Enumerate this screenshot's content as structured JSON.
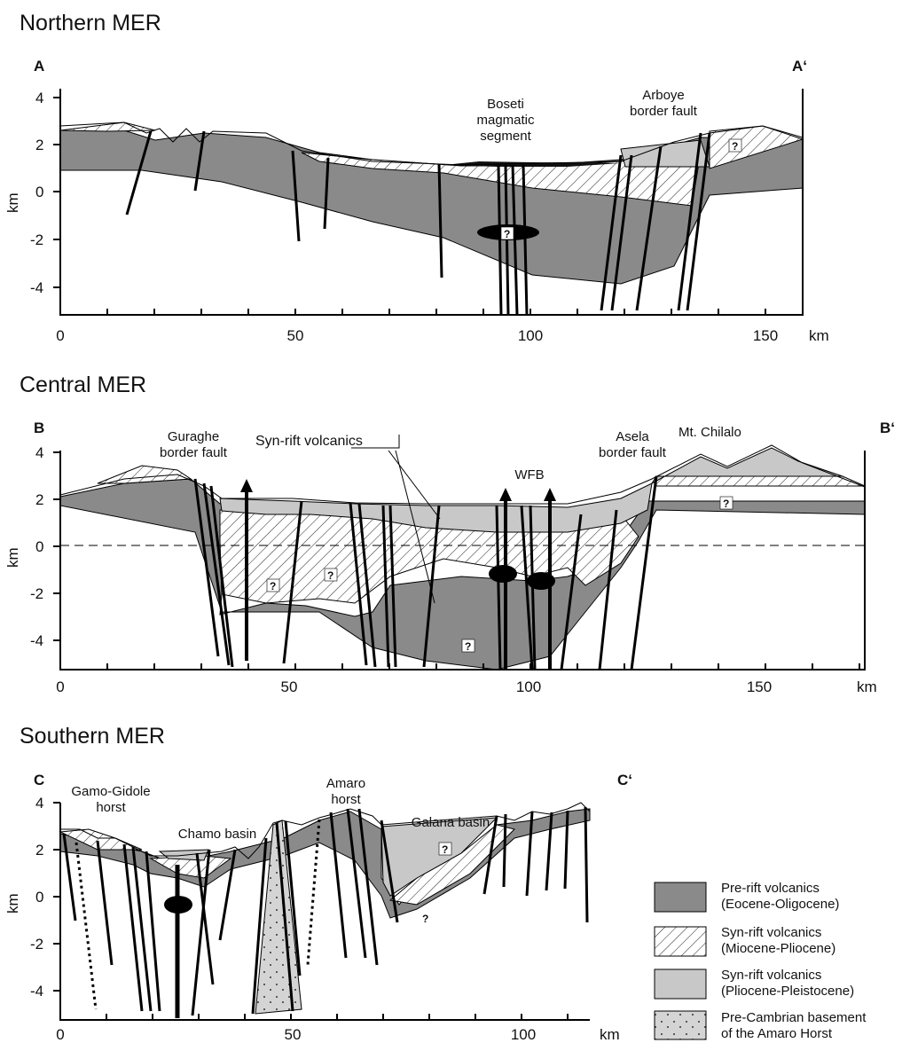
{
  "colors": {
    "prerift": "#8a8a8a",
    "synrift_pliocene": "#c8c8c8",
    "basement": "#d4d4d4",
    "line": "#000000"
  },
  "panels": [
    {
      "title": "Northern MER",
      "left_label": "A",
      "right_label": "A‘",
      "y_label": "km",
      "y_ticks": [
        "4",
        "2",
        "0",
        "-2",
        "-4"
      ],
      "x_ticks": [
        "0",
        "50",
        "100",
        "150"
      ],
      "x_unit": "km",
      "annotations": [
        {
          "text": "Boseti"
        },
        {
          "text": "magmatic"
        },
        {
          "text": "segment"
        },
        {
          "text": "Arboye"
        },
        {
          "text": "border fault"
        }
      ],
      "question_marks": [
        "?",
        "?"
      ]
    },
    {
      "title": "Central MER",
      "left_label": "B",
      "right_label": "B‘",
      "y_label": "km",
      "y_ticks": [
        "4",
        "2",
        "0",
        "-2",
        "-4"
      ],
      "x_ticks": [
        "0",
        "50",
        "100",
        "150"
      ],
      "x_unit": "km",
      "annotations": [
        {
          "text": "Guraghe"
        },
        {
          "text": "border fault"
        },
        {
          "text": "Syn-rift volcanics"
        },
        {
          "text": "WFB"
        },
        {
          "text": "Asela"
        },
        {
          "text": "border fault"
        },
        {
          "text": "Mt. Chilalo"
        }
      ],
      "question_marks": [
        "?",
        "?",
        "?",
        "?"
      ]
    },
    {
      "title": "Southern MER",
      "left_label": "C",
      "right_label": "C‘",
      "y_label": "km",
      "y_ticks": [
        "4",
        "2",
        "0",
        "-2",
        "-4"
      ],
      "x_ticks": [
        "0",
        "50",
        "100"
      ],
      "x_unit": "km",
      "annotations": [
        {
          "text": "Gamo-Gidole"
        },
        {
          "text": "horst"
        },
        {
          "text": "Chamo basin"
        },
        {
          "text": "Amaro"
        },
        {
          "text": "horst"
        },
        {
          "text": "Galana basin"
        }
      ],
      "question_marks": [
        "?",
        "?"
      ]
    }
  ],
  "legend": [
    {
      "line1": "Pre-rift volcanics",
      "line2": "(Eocene-Oligocene)",
      "pattern": "solid-dark"
    },
    {
      "line1": "Syn-rift volcanics",
      "line2": "(Miocene-Pliocene)",
      "pattern": "hatched"
    },
    {
      "line1": "Syn-rift volcanics",
      "line2": "(Pliocene-Pleistocene)",
      "pattern": "solid-light"
    },
    {
      "line1": "Pre-Cambrian basement",
      "line2": "of the Amaro Horst",
      "pattern": "dotted"
    }
  ]
}
